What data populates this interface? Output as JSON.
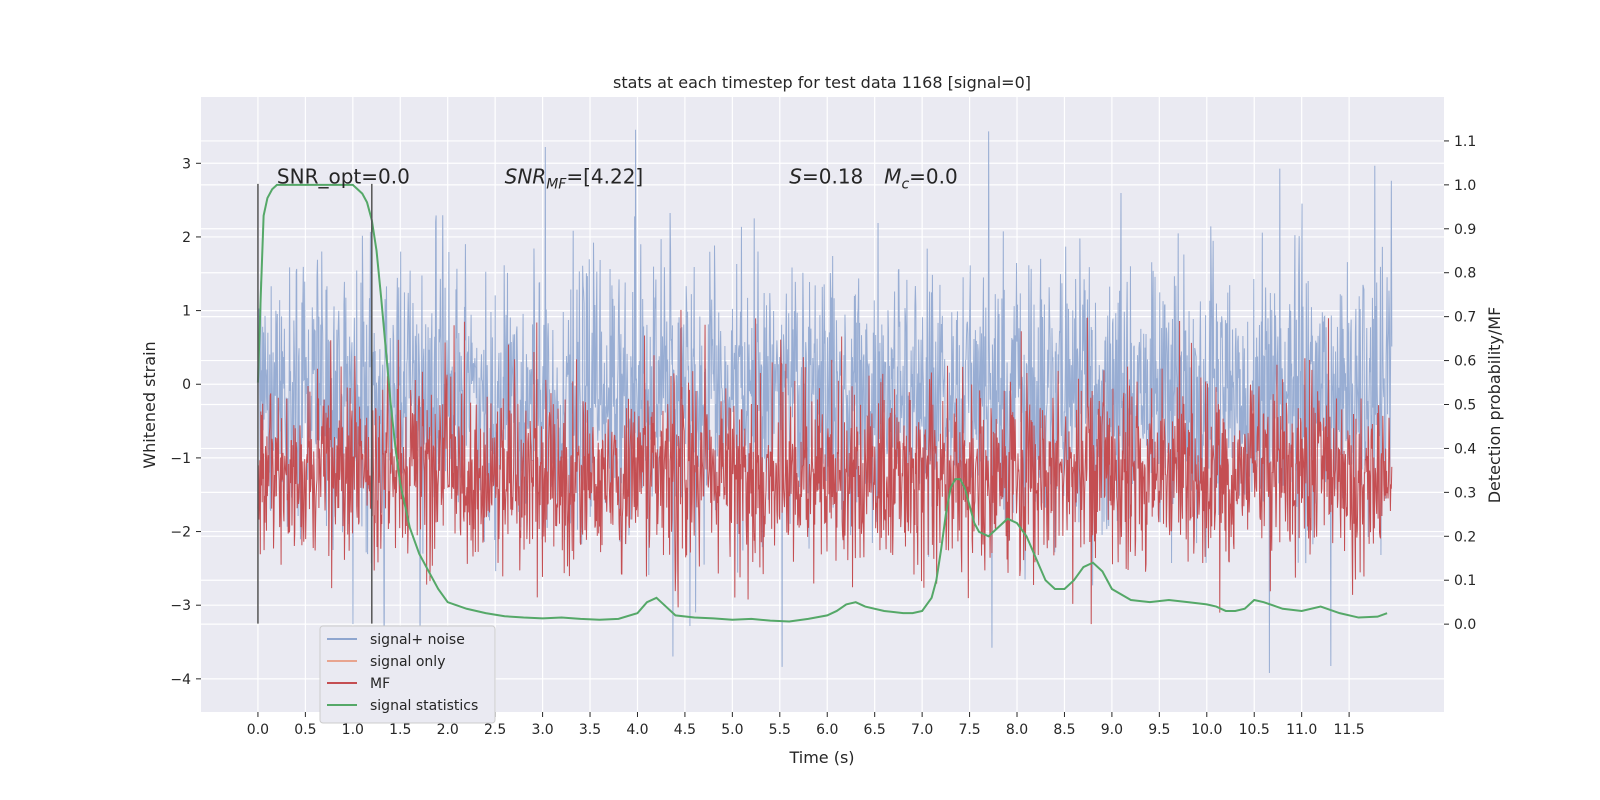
{
  "chart_data": {
    "type": "line",
    "title": "stats at each timestep for test data 1168 [signal=0]",
    "xlabel": "Time (s)",
    "ylabel_left": "Whitened strain",
    "ylabel_right": "Detection probability/MF",
    "xlim": [
      -0.6,
      12.5
    ],
    "ylim_left": [
      -4.45,
      3.9
    ],
    "ylim_right": [
      -0.2,
      1.2
    ],
    "x_ticks": [
      0.0,
      0.5,
      1.0,
      1.5,
      2.0,
      2.5,
      3.0,
      3.5,
      4.0,
      4.5,
      5.0,
      5.5,
      6.0,
      6.5,
      7.0,
      7.5,
      8.0,
      8.5,
      9.0,
      9.5,
      10.0,
      10.5,
      11.0,
      11.5
    ],
    "x_tick_labels": [
      "0.0",
      "0.5",
      "1.0",
      "1.5",
      "2.0",
      "2.5",
      "3.0",
      "3.5",
      "4.0",
      "4.5",
      "5.0",
      "5.5",
      "6.0",
      "6.5",
      "7.0",
      "7.5",
      "8.0",
      "8.5",
      "9.0",
      "9.5",
      "10.0",
      "10.5",
      "11.0",
      "11.5"
    ],
    "y_left_ticks": [
      3,
      2,
      1,
      0,
      -1,
      -2,
      -3,
      -4
    ],
    "y_left_tick_labels": [
      "3",
      "2",
      "1",
      "0",
      "−1",
      "−2",
      "−3",
      "−4"
    ],
    "y_right_ticks": [
      1.1,
      1.0,
      0.9,
      0.8,
      0.7,
      0.6,
      0.5,
      0.4,
      0.3,
      0.2,
      0.1,
      0.0
    ],
    "y_right_tick_labels": [
      "1.1",
      "1.0",
      "0.9",
      "0.8",
      "0.7",
      "0.6",
      "0.5",
      "0.4",
      "0.3",
      "0.2",
      "0.1",
      "0.0"
    ],
    "grid": true,
    "legend_position": "lower-left",
    "annotations": [
      {
        "text": "SNR_opt=0.0",
        "x": 0.2,
        "y": 2.82
      },
      {
        "text_main": "SNR",
        "text_sub": "MF",
        "text_rest": "=[4.22]",
        "italic": true,
        "x": 2.6,
        "y": 2.82
      },
      {
        "text_main": "S",
        "text_rest": "=0.18",
        "italic": true,
        "x": 5.6,
        "y": 2.82
      },
      {
        "text_main": "M",
        "text_sub": "c",
        "text_rest": "=0.0",
        "italic": true,
        "x": 6.6,
        "y": 2.82
      }
    ],
    "vlines": [
      {
        "x": 0.0,
        "ymin": -3.25,
        "ymax": 2.72
      },
      {
        "x": 1.2,
        "ymin": -3.25,
        "ymax": 2.72
      }
    ],
    "series": [
      {
        "name": "signal+ noise",
        "axis": "left",
        "color": "#8fa6cf",
        "noise": true,
        "x_range": [
          0.0,
          11.95
        ],
        "band_p95": [
          1.35,
          -1.6
        ],
        "peak_max": 3.55,
        "peak_min": -4.1
      },
      {
        "name": "signal only",
        "axis": "left",
        "color": "#e8a48f",
        "x": [],
        "y": []
      },
      {
        "name": "MF",
        "axis": "right",
        "color": "#c44e52",
        "noise": true,
        "x_range": [
          0.0,
          11.95
        ],
        "band": [
          0.0,
          0.65
        ],
        "peak_max": 0.72
      },
      {
        "name": "signal statistics",
        "axis": "right",
        "color": "#55a868",
        "x": [
          0.0,
          0.03,
          0.06,
          0.1,
          0.15,
          0.2,
          0.3,
          0.4,
          0.5,
          0.6,
          0.7,
          0.8,
          0.9,
          1.0,
          1.05,
          1.1,
          1.15,
          1.2,
          1.25,
          1.3,
          1.35,
          1.4,
          1.45,
          1.5,
          1.6,
          1.7,
          1.8,
          1.9,
          2.0,
          2.2,
          2.4,
          2.6,
          2.8,
          3.0,
          3.2,
          3.4,
          3.6,
          3.8,
          4.0,
          4.1,
          4.2,
          4.3,
          4.4,
          4.6,
          4.8,
          5.0,
          5.2,
          5.4,
          5.6,
          5.8,
          6.0,
          6.1,
          6.2,
          6.3,
          6.4,
          6.6,
          6.8,
          6.9,
          7.0,
          7.1,
          7.15,
          7.2,
          7.25,
          7.3,
          7.35,
          7.4,
          7.45,
          7.5,
          7.55,
          7.6,
          7.7,
          7.8,
          7.9,
          8.0,
          8.1,
          8.2,
          8.3,
          8.4,
          8.5,
          8.6,
          8.7,
          8.8,
          8.9,
          9.0,
          9.2,
          9.4,
          9.6,
          9.8,
          10.0,
          10.1,
          10.2,
          10.3,
          10.4,
          10.5,
          10.6,
          10.8,
          11.0,
          11.2,
          11.4,
          11.6,
          11.8,
          11.9
        ],
        "y": [
          0.55,
          0.75,
          0.93,
          0.97,
          0.99,
          1.0,
          1.0,
          1.0,
          1.0,
          1.0,
          1.0,
          1.0,
          1.0,
          1.0,
          0.99,
          0.98,
          0.96,
          0.92,
          0.85,
          0.74,
          0.62,
          0.5,
          0.4,
          0.32,
          0.22,
          0.16,
          0.12,
          0.08,
          0.05,
          0.035,
          0.025,
          0.018,
          0.015,
          0.013,
          0.015,
          0.012,
          0.01,
          0.012,
          0.025,
          0.05,
          0.06,
          0.04,
          0.02,
          0.015,
          0.013,
          0.01,
          0.012,
          0.008,
          0.006,
          0.012,
          0.02,
          0.03,
          0.045,
          0.05,
          0.04,
          0.03,
          0.025,
          0.025,
          0.03,
          0.06,
          0.1,
          0.17,
          0.25,
          0.31,
          0.33,
          0.33,
          0.31,
          0.27,
          0.23,
          0.21,
          0.2,
          0.22,
          0.24,
          0.23,
          0.2,
          0.15,
          0.1,
          0.08,
          0.08,
          0.1,
          0.13,
          0.14,
          0.12,
          0.08,
          0.055,
          0.05,
          0.055,
          0.05,
          0.045,
          0.04,
          0.03,
          0.03,
          0.035,
          0.055,
          0.05,
          0.035,
          0.03,
          0.04,
          0.025,
          0.015,
          0.017,
          0.025
        ]
      }
    ]
  }
}
